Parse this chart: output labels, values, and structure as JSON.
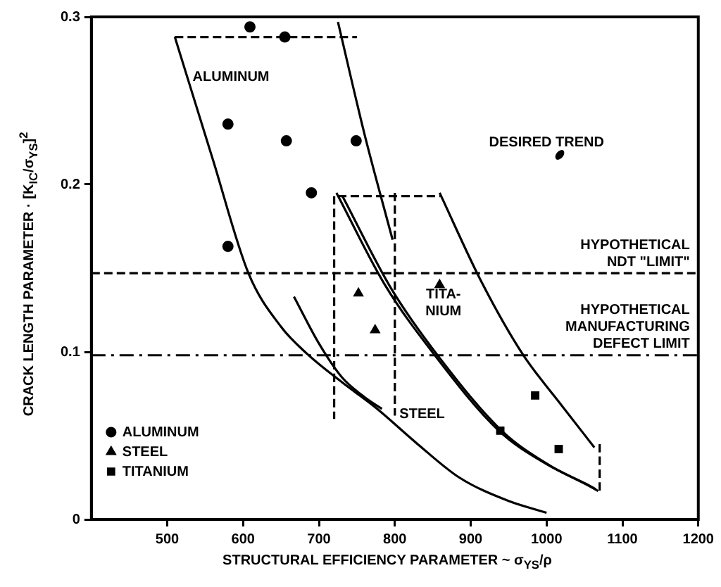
{
  "chart_data": {
    "type": "line",
    "xlabel": "STRUCTURAL EFFICIENCY PARAMETER ~ σ$_{YS}$/ρ",
    "ylabel": "CRACK LENGTH PARAMETER · [K$_{IC}$/σ$_{YS}$]$^{2}$",
    "xlim": [
      400,
      1200
    ],
    "xticks": [
      500,
      600,
      700,
      800,
      900,
      1000,
      1100,
      1200
    ],
    "ylim": [
      0,
      0.3
    ],
    "yticks": [
      0,
      0.1,
      0.2,
      0.3
    ],
    "grid": false,
    "legend": "bottom left",
    "series": [
      {
        "type": "line",
        "color": "#000000",
        "line_style": "solid",
        "x": [
          510,
          560,
          607,
          650,
          684,
          730,
          774,
          830,
          885,
          950,
          1000
        ],
        "values": [
          0.288,
          0.215,
          0.147,
          0.115,
          0.099,
          0.082,
          0.067,
          0.045,
          0.025,
          0.011,
          0.004
        ]
      },
      {
        "type": "line",
        "color": "#000000",
        "line_style": "solid",
        "x": [
          667,
          700,
          730,
          760,
          783
        ],
        "values": [
          0.133,
          0.105,
          0.085,
          0.073,
          0.066
        ]
      },
      {
        "type": "line",
        "color": "#000000",
        "line_style": "solid",
        "x": [
          725,
          760,
          797
        ],
        "values": [
          0.297,
          0.23,
          0.167
        ]
      },
      {
        "type": "line",
        "color": "#000000",
        "line_style": "solid",
        "x": [
          723,
          787,
          851,
          937,
          1000,
          1053,
          1065
        ],
        "values": [
          0.195,
          0.14,
          0.099,
          0.053,
          0.033,
          0.021,
          0.018
        ]
      },
      {
        "type": "line",
        "color": "#000000",
        "line_style": "solid",
        "x": [
          731,
          795,
          858,
          943,
          1005,
          1056,
          1068
        ],
        "values": [
          0.193,
          0.138,
          0.097,
          0.052,
          0.032,
          0.02,
          0.017
        ]
      },
      {
        "type": "line",
        "color": "#000000",
        "line_style": "solid",
        "x": [
          859,
          914,
          968,
          1020,
          1063
        ],
        "values": [
          0.195,
          0.142,
          0.099,
          0.068,
          0.043
        ]
      },
      {
        "type": "line",
        "color": "#000000",
        "line_style": "dashed",
        "x": [
          510,
          750
        ],
        "values": [
          0.288,
          0.288
        ]
      },
      {
        "type": "line",
        "color": "#000000",
        "line_style": "dashed",
        "x": [
          725,
          860
        ],
        "values": [
          0.193,
          0.193
        ]
      },
      {
        "type": "line",
        "color": "#000000",
        "line_style": "dashed",
        "x": [
          720,
          720
        ],
        "values": [
          0.193,
          0.06
        ]
      },
      {
        "type": "line",
        "color": "#000000",
        "line_style": "dashed",
        "x": [
          800,
          800
        ],
        "values": [
          0.195,
          0.062
        ]
      },
      {
        "type": "line",
        "color": "#000000",
        "line_style": "dashed",
        "x": [
          1070,
          1070
        ],
        "values": [
          0.045,
          0.015
        ]
      },
      {
        "type": "scatter",
        "name": "ALUMINUM",
        "color": "#000000",
        "marker": "circle",
        "x": [
          580,
          657,
          690,
          580,
          609,
          655,
          749
        ],
        "values": [
          0.236,
          0.226,
          0.195,
          0.163,
          0.294,
          0.288,
          0.226
        ]
      },
      {
        "type": "scatter",
        "name": "STEEL",
        "color": "#000000",
        "marker": "triangle",
        "x": [
          752,
          774,
          859
        ],
        "values": [
          0.135,
          0.113,
          0.14
        ]
      },
      {
        "type": "scatter",
        "name": "TITANIUM",
        "color": "#000000",
        "marker": "square",
        "x": [
          939,
          985,
          1016
        ],
        "values": [
          0.053,
          0.074,
          0.042
        ]
      }
    ],
    "ref_lines": [
      {
        "axis": "y",
        "value": 0.147,
        "label": "HYPOTHETICAL\nNDT \"LIMIT\"",
        "line_style": "dashed"
      },
      {
        "axis": "y",
        "value": 0.098,
        "label": "HYPOTHETICAL\nMANUFACTURING\nDEFECT LIMIT",
        "line_style": "dashdot"
      }
    ],
    "annotations": [
      "ALUMINUM",
      "TITA-\nNIUM",
      "STEEL",
      "DESIRED TREND"
    ]
  }
}
